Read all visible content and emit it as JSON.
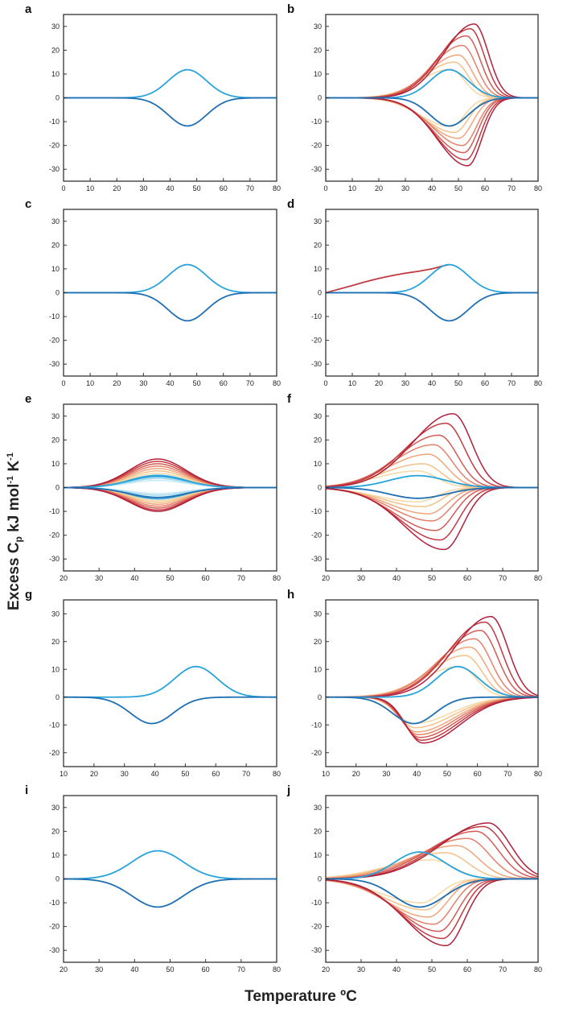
{
  "y_label": {
    "a": "Excess C",
    "b": "p",
    "c": " kJ mol",
    "d": "-1",
    "e": " K",
    "f": "-1"
  },
  "x_label": {
    "a": "Temperature ",
    "b": "º",
    "c": "C"
  },
  "colors": {
    "blue": "#1f6fb2",
    "blue_light": "#29a3dc",
    "warm_ramp": [
      "#f4d9a6",
      "#f5c18a",
      "#f0a57a",
      "#e5806a",
      "#d65a54",
      "#c23a40",
      "#b0203a"
    ],
    "cool_ramp": [
      "#c9e9f6",
      "#9fd8ef",
      "#71c3e8",
      "#3ea9dd"
    ]
  },
  "chart_data": [
    {
      "panel": "a",
      "type": "line",
      "title": "",
      "xlabel": "",
      "ylabel": "",
      "xlim": [
        0,
        80
      ],
      "ylim": [
        -35,
        35
      ],
      "x_ticks": [
        0,
        10,
        20,
        30,
        40,
        50,
        60,
        70,
        80
      ],
      "y_ticks": [
        -30,
        -20,
        -10,
        0,
        10,
        20,
        30
      ],
      "series": [
        {
          "kind": "peak",
          "color": "#29a3dc",
          "center": 46.5,
          "height": 11.8,
          "width": 7.2
        },
        {
          "kind": "peak",
          "color": "#1f6fb2",
          "center": 46.5,
          "height": -11.8,
          "width": 7.2
        }
      ]
    },
    {
      "panel": "b",
      "type": "line",
      "title": "",
      "xlabel": "",
      "ylabel": "",
      "xlim": [
        0,
        80
      ],
      "ylim": [
        -35,
        35
      ],
      "x_ticks": [
        0,
        10,
        20,
        30,
        40,
        50,
        60,
        70,
        80
      ],
      "y_ticks": [
        -30,
        -20,
        -10,
        0,
        10,
        20,
        30
      ],
      "family": {
        "kind": "skew",
        "sign": 1,
        "width": 8.5,
        "centers": [
          47,
          48.5,
          50,
          51.5,
          53,
          54.5,
          56
        ],
        "heights": [
          12,
          15,
          18,
          22,
          26,
          29,
          31
        ]
      },
      "family_neg": {
        "kind": "skew",
        "sign": -1,
        "width": 8.5,
        "centers": [
          47,
          48.5,
          50,
          51.5,
          52,
          52.8,
          53.5
        ],
        "heights": [
          12,
          14.5,
          17,
          20,
          23,
          26,
          28.5
        ]
      },
      "series": [
        {
          "kind": "peak",
          "color": "#29a3dc",
          "center": 46.5,
          "height": 11.8,
          "width": 7.2
        },
        {
          "kind": "peak",
          "color": "#1f6fb2",
          "center": 46.5,
          "height": -11.8,
          "width": 7.2
        }
      ]
    },
    {
      "panel": "c",
      "type": "line",
      "title": "",
      "xlabel": "",
      "ylabel": "",
      "xlim": [
        0,
        80
      ],
      "ylim": [
        -35,
        35
      ],
      "x_ticks": [
        0,
        10,
        20,
        30,
        40,
        50,
        60,
        70,
        80
      ],
      "y_ticks": [
        -30,
        -20,
        -10,
        0,
        10,
        20,
        30
      ],
      "series": [
        {
          "kind": "peak",
          "color": "#29a3dc",
          "center": 46.5,
          "height": 11.8,
          "width": 7.2
        },
        {
          "kind": "peak",
          "color": "#1f6fb2",
          "center": 46.5,
          "height": -11.8,
          "width": 7.2
        }
      ]
    },
    {
      "panel": "d",
      "type": "line",
      "title": "",
      "xlabel": "",
      "ylabel": "",
      "xlim": [
        0,
        80
      ],
      "ylim": [
        -35,
        35
      ],
      "x_ticks": [
        0,
        10,
        20,
        30,
        40,
        50,
        60,
        70,
        80
      ],
      "y_ticks": [
        -30,
        -20,
        -10,
        0,
        10,
        20,
        30
      ],
      "series": [
        {
          "kind": "points",
          "color": "#c23a40",
          "x": [
            0,
            5,
            10,
            15,
            20,
            25,
            30,
            35,
            40,
            44,
            46.5
          ],
          "y": [
            0,
            1.5,
            3,
            4.6,
            6,
            7.2,
            8.2,
            9.0,
            10.0,
            11.2,
            11.8
          ]
        },
        {
          "kind": "peak",
          "color": "#29a3dc",
          "center": 46.5,
          "height": 11.8,
          "width": 7.2
        },
        {
          "kind": "peak",
          "color": "#1f6fb2",
          "center": 46.5,
          "height": -11.8,
          "width": 7.2
        }
      ]
    },
    {
      "panel": "e",
      "type": "line",
      "title": "",
      "xlabel": "",
      "ylabel": "",
      "xlim": [
        20,
        80
      ],
      "ylim": [
        -35,
        35
      ],
      "x_ticks": [
        20,
        30,
        40,
        50,
        60,
        70,
        80
      ],
      "y_ticks": [
        -30,
        -20,
        -10,
        0,
        10,
        20,
        30
      ],
      "family": {
        "kind": "peak",
        "sign": 1,
        "width": 8,
        "centers": [
          46.5,
          46.5,
          46.5,
          46.5,
          46.5,
          46.5,
          46.5,
          46.5,
          46.5,
          46.5,
          46.5
        ],
        "heights": [
          3,
          3.8,
          4.5,
          5.2,
          6,
          7,
          8,
          9,
          10,
          11,
          12
        ]
      },
      "family_neg": {
        "kind": "peak",
        "sign": -1,
        "width": 8,
        "centers": [
          46.5,
          46.5,
          46.5,
          46.5,
          46.5,
          46.5,
          46.5,
          46.5,
          46.5,
          46.5,
          46.5
        ],
        "heights": [
          2.5,
          3.2,
          4,
          4.8,
          5.5,
          6.2,
          7,
          7.8,
          8.6,
          9.4,
          10
        ]
      },
      "series": [
        {
          "kind": "peak",
          "color": "#29a3dc",
          "center": 46.5,
          "height": 4.8,
          "width": 8
        },
        {
          "kind": "peak",
          "color": "#1f6fb2",
          "center": 46.5,
          "height": -4.2,
          "width": 8
        }
      ]
    },
    {
      "panel": "f",
      "type": "line",
      "title": "",
      "xlabel": "",
      "ylabel": "",
      "xlim": [
        20,
        80
      ],
      "ylim": [
        -35,
        35
      ],
      "x_ticks": [
        20,
        30,
        40,
        50,
        60,
        70,
        80
      ],
      "y_ticks": [
        -30,
        -20,
        -10,
        0,
        10,
        20,
        30
      ],
      "family": {
        "kind": "skew",
        "sign": 1,
        "width": 8.5,
        "centers": [
          46,
          47.5,
          49,
          50.5,
          52,
          54,
          56
        ],
        "heights": [
          7,
          10,
          14,
          18,
          22,
          27,
          31
        ]
      },
      "family_neg": {
        "kind": "skew",
        "sign": -1,
        "width": 8.5,
        "centers": [
          46,
          47.5,
          49,
          50,
          51,
          52.3,
          53.5
        ],
        "heights": [
          6,
          8,
          11,
          14,
          18,
          22,
          26
        ]
      },
      "series": [
        {
          "kind": "peak",
          "color": "#29a3dc",
          "center": 46,
          "height": 5,
          "width": 8
        },
        {
          "kind": "peak",
          "color": "#1f6fb2",
          "center": 46,
          "height": -4.5,
          "width": 8
        }
      ]
    },
    {
      "panel": "g",
      "type": "line",
      "title": "",
      "xlabel": "",
      "ylabel": "",
      "xlim": [
        10,
        80
      ],
      "ylim": [
        -25,
        35
      ],
      "x_ticks": [
        10,
        20,
        30,
        40,
        50,
        60,
        70,
        80
      ],
      "y_ticks": [
        -20,
        -10,
        0,
        10,
        20,
        30
      ],
      "series": [
        {
          "kind": "peak",
          "color": "#29a3dc",
          "center": 53.5,
          "height": 11,
          "width": 7
        },
        {
          "kind": "peak",
          "color": "#1f6fb2",
          "center": 39,
          "height": -9.5,
          "width": 7
        }
      ]
    },
    {
      "panel": "h",
      "type": "line",
      "title": "",
      "xlabel": "",
      "ylabel": "",
      "xlim": [
        10,
        80
      ],
      "ylim": [
        -25,
        35
      ],
      "x_ticks": [
        10,
        20,
        30,
        40,
        50,
        60,
        70,
        80
      ],
      "y_ticks": [
        -20,
        -10,
        0,
        10,
        20,
        30
      ],
      "family": {
        "kind": "skew",
        "sign": 1,
        "width": 9,
        "centers": [
          54,
          56,
          57.5,
          59,
          61,
          62.5,
          64.5
        ],
        "heights": [
          11,
          15,
          18,
          21,
          24,
          27,
          29
        ]
      },
      "family_neg": {
        "kind": "skew_left",
        "sign": -1,
        "width": 9,
        "centers": [
          39,
          39.5,
          40,
          40.5,
          41,
          41.5,
          42
        ],
        "heights": [
          9.5,
          11,
          12.5,
          13.5,
          14.5,
          15.5,
          16.5
        ]
      },
      "series": [
        {
          "kind": "peak",
          "color": "#29a3dc",
          "center": 53.5,
          "height": 11,
          "width": 7
        },
        {
          "kind": "peak",
          "color": "#1f6fb2",
          "center": 39,
          "height": -9.5,
          "width": 7
        }
      ]
    },
    {
      "panel": "i",
      "type": "line",
      "title": "",
      "xlabel": "",
      "ylabel": "",
      "xlim": [
        20,
        80
      ],
      "ylim": [
        -35,
        35
      ],
      "x_ticks": [
        20,
        30,
        40,
        50,
        60,
        70,
        80
      ],
      "y_ticks": [
        -30,
        -20,
        -10,
        0,
        10,
        20,
        30
      ],
      "series": [
        {
          "kind": "peak",
          "color": "#29a3dc",
          "center": 46.5,
          "height": 11.8,
          "width": 7.2
        },
        {
          "kind": "peak",
          "color": "#1f6fb2",
          "center": 46.5,
          "height": -11.8,
          "width": 7.2
        }
      ]
    },
    {
      "panel": "j",
      "type": "line",
      "title": "",
      "xlabel": "",
      "ylabel": "",
      "xlim": [
        20,
        80
      ],
      "ylim": [
        -35,
        35
      ],
      "x_ticks": [
        20,
        30,
        40,
        50,
        60,
        70,
        80
      ],
      "y_ticks": [
        -30,
        -20,
        -10,
        0,
        10,
        20,
        30
      ],
      "family": {
        "kind": "skew",
        "sign": 1,
        "width": 10,
        "centers": [
          50,
          54,
          57,
          60,
          62.5,
          64.5,
          66
        ],
        "heights": [
          8,
          11,
          14,
          17,
          20,
          22,
          23.5
        ]
      },
      "family_neg": {
        "kind": "skew",
        "sign": -1,
        "width": 8.5,
        "centers": [
          47,
          48,
          49,
          50.5,
          52,
          53,
          54
        ],
        "heights": [
          10,
          13,
          16,
          19,
          22,
          25,
          28
        ]
      },
      "series": [
        {
          "kind": "peak",
          "color": "#29a3dc",
          "center": 46.5,
          "height": 11.3,
          "width": 7.2
        },
        {
          "kind": "peak",
          "color": "#1f6fb2",
          "center": 46.5,
          "height": -11.8,
          "width": 7.2
        }
      ]
    }
  ]
}
